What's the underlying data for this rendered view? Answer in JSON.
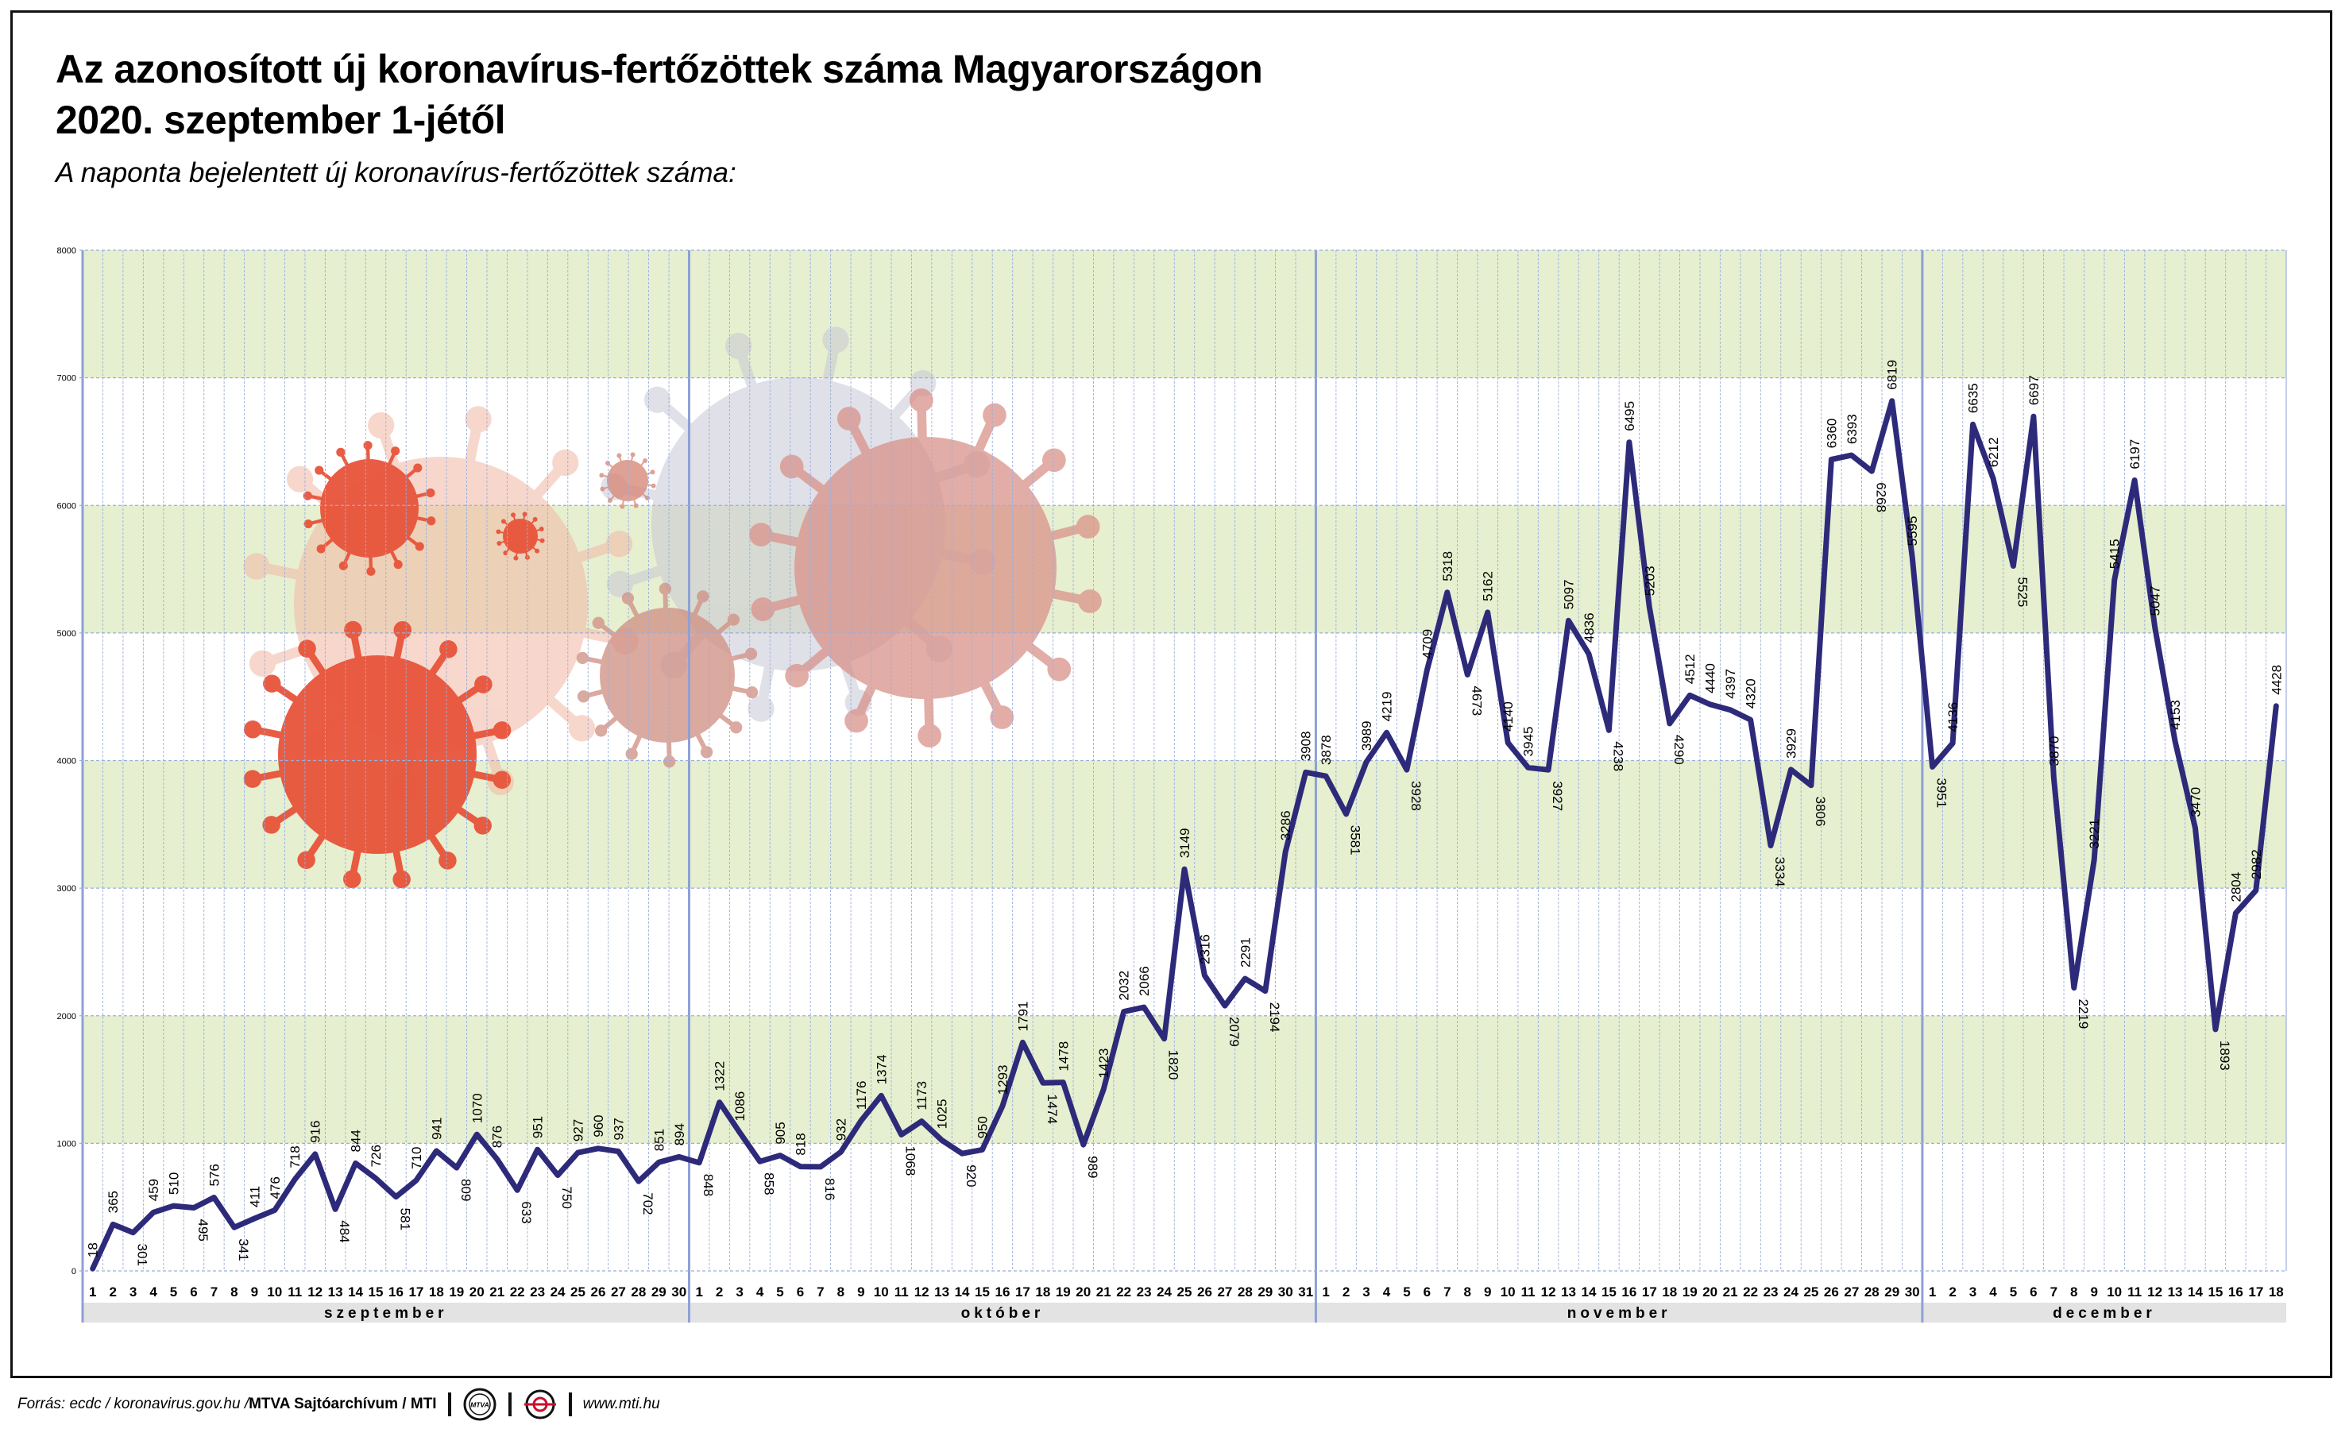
{
  "header": {
    "title_line1": "Az azonosított új koronavírus-fertőzöttek száma Magyarországon",
    "title_line2": "2020. szeptember 1-jétől",
    "subtitle": "A naponta bejelentett új koronavírus-fertőzöttek száma:"
  },
  "footer": {
    "source_prefix": "Forrás: ecdc / koronavirus.gov.hu / ",
    "archive": "MTVA Sajtóarchívum / MTI",
    "logo1_text": "MTVA",
    "website": "www.mti.hu"
  },
  "colors": {
    "line": "#2e2a7a",
    "band_green": "#e6efcf",
    "grid_blue": "#9aaedc",
    "month_strip": "#e3e3e3",
    "virus_red": "#e8543a",
    "virus_pink": "#d9928a",
    "virus_gray": "#c8c8d6"
  },
  "chart_data": {
    "type": "line",
    "title": "Az azonosított új koronavírus-fertőzöttek száma Magyarországon 2020. szeptember 1-jétől",
    "subtitle": "A naponta bejelentett új koronavírus-fertőzöttek száma:",
    "xlabel": "",
    "ylabel": "",
    "ylim": [
      0,
      8000
    ],
    "yticks": [
      0,
      1000,
      2000,
      3000,
      4000,
      5000,
      6000,
      7000,
      8000
    ],
    "grid": true,
    "months": [
      {
        "name": "szeptember",
        "days": 30
      },
      {
        "name": "október",
        "days": 31
      },
      {
        "name": "november",
        "days": 30
      },
      {
        "name": "december",
        "days": 18
      }
    ],
    "series": [
      {
        "values": [
          18,
          365,
          301,
          459,
          510,
          495,
          576,
          341,
          411,
          476,
          718,
          916,
          484,
          844,
          726,
          581,
          710,
          941,
          809,
          1070,
          876,
          633,
          951,
          750,
          927,
          960,
          937,
          702,
          851,
          894,
          848,
          1322,
          1086,
          858,
          905,
          818,
          816,
          932,
          1176,
          1374,
          1068,
          1173,
          1025,
          920,
          950,
          1293,
          1791,
          1474,
          1478,
          989,
          1423,
          2032,
          2066,
          1820,
          3149,
          2316,
          2079,
          2291,
          2194,
          3286,
          3908,
          3878,
          3581,
          3989,
          4219,
          3928,
          4709,
          5318,
          4673,
          5162,
          4140,
          3945,
          3927,
          5097,
          4836,
          4238,
          6495,
          5203,
          4290,
          4512,
          4440,
          4397,
          4320,
          3334,
          3929,
          3806,
          6360,
          6393,
          6268,
          6819,
          5595,
          3951,
          4136,
          6635,
          6212,
          5525,
          6697,
          3870,
          2219,
          3221,
          5415,
          6197,
          5047,
          4153,
          3470,
          1893,
          2804,
          2982,
          4428
        ]
      }
    ]
  }
}
